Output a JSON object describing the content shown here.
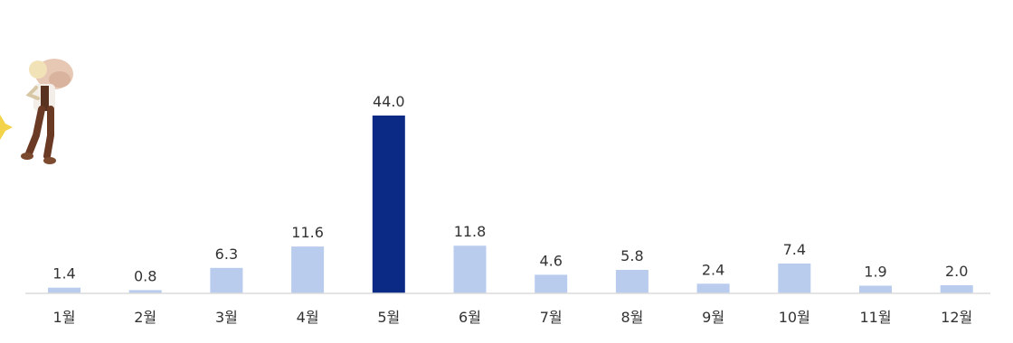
{
  "chart_data": {
    "type": "bar",
    "categories": [
      "1월",
      "2월",
      "3월",
      "4월",
      "5월",
      "6월",
      "7월",
      "8월",
      "9월",
      "10월",
      "11월",
      "12월"
    ],
    "values": [
      1.4,
      0.8,
      6.3,
      11.6,
      44.0,
      11.8,
      4.6,
      5.8,
      2.4,
      7.4,
      1.9,
      2.0
    ],
    "value_labels": [
      "1.4",
      "0.8",
      "6.3",
      "11.6",
      "44.0",
      "11.8",
      "4.6",
      "5.8",
      "2.4",
      "7.4",
      "1.9",
      "2.0"
    ],
    "highlight_index": 4,
    "ylim": [
      0,
      44.0
    ],
    "grid": false,
    "legend": "none",
    "title": "",
    "xlabel": "",
    "ylabel": ""
  },
  "colors": {
    "bar": "#b9ccee",
    "bar_highlight": "#0b2a86",
    "baseline": "#dcdcdc",
    "text": "#333333"
  },
  "illustration": {
    "icon": "person-carrying-sack-icon"
  }
}
